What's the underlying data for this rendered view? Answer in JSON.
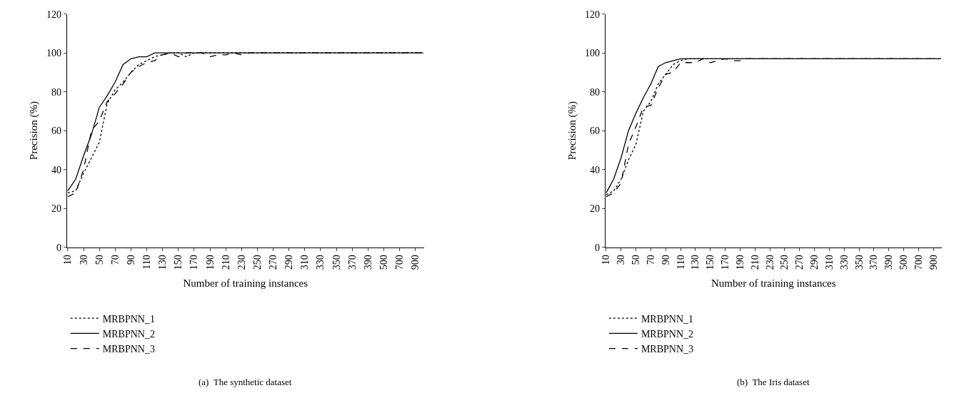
{
  "chart_data": [
    {
      "type": "line",
      "xlabel": "Number of training instances",
      "ylabel": "Precision (%)",
      "ylim": [
        0,
        120
      ],
      "yticks": [
        0,
        20,
        40,
        60,
        80,
        100,
        120
      ],
      "legend": "bottom left",
      "marker": "none",
      "categories": [
        "10",
        null,
        "30",
        null,
        "50",
        null,
        "70",
        null,
        "90",
        null,
        "110",
        null,
        "130",
        null,
        "150",
        null,
        "170",
        null,
        "190",
        null,
        "210",
        null,
        "230",
        null,
        "250",
        null,
        "270",
        null,
        "290",
        null,
        "310",
        null,
        "330",
        null,
        "350",
        null,
        "370",
        null,
        "390",
        null,
        "500",
        null,
        "700",
        null,
        "900",
        null
      ],
      "series": [
        {
          "name": "MRBPNN_1",
          "color": "#000000",
          "line_style": "dotted",
          "values": [
            28,
            29,
            38,
            46,
            54,
            74,
            81,
            85,
            90,
            94,
            96,
            98,
            99,
            100,
            100,
            98,
            100,
            100,
            100,
            100,
            100,
            100,
            100,
            100,
            100,
            100,
            100,
            100,
            100,
            100,
            100,
            100,
            100,
            100,
            100,
            100,
            100,
            100,
            100,
            100,
            100,
            100,
            100,
            100,
            100,
            100
          ]
        },
        {
          "name": "MRBPNN_2",
          "color": "#000000",
          "line_style": "solid",
          "values": [
            29,
            35,
            47,
            58,
            72,
            78,
            85,
            94,
            97,
            98,
            98,
            100,
            100,
            100,
            100,
            100,
            100,
            100,
            100,
            100,
            100,
            100,
            100,
            100,
            100,
            100,
            100,
            100,
            100,
            100,
            100,
            100,
            100,
            100,
            100,
            100,
            100,
            100,
            100,
            100,
            100,
            100,
            100,
            100,
            100,
            100
          ]
        },
        {
          "name": "MRBPNN_3",
          "color": "#000000",
          "line_style": "dashed",
          "values": [
            26,
            28,
            40,
            60,
            65,
            75,
            79,
            84,
            90,
            93,
            95,
            96,
            99,
            100,
            98,
            100,
            100,
            100,
            98,
            99,
            99,
            100,
            99,
            100,
            100,
            100,
            100,
            100,
            100,
            100,
            100,
            100,
            100,
            100,
            100,
            100,
            100,
            100,
            100,
            100,
            100,
            100,
            100,
            100,
            100,
            100
          ]
        }
      ],
      "annotations": [
        "(a)  The synthetic dataset"
      ]
    },
    {
      "type": "line",
      "xlabel": "Number of training instances",
      "ylabel": "Precision (%)",
      "ylim": [
        0,
        120
      ],
      "yticks": [
        0,
        20,
        40,
        60,
        80,
        100,
        120
      ],
      "legend": "bottom left",
      "marker": "none",
      "categories": [
        "10",
        null,
        "30",
        null,
        "50",
        null,
        "70",
        null,
        "90",
        null,
        "110",
        null,
        "130",
        null,
        "150",
        null,
        "170",
        null,
        "190",
        null,
        "210",
        null,
        "230",
        null,
        "250",
        null,
        "270",
        null,
        "290",
        null,
        "310",
        null,
        "330",
        null,
        "350",
        null,
        "370",
        null,
        "390",
        null,
        "500",
        null,
        "700",
        null,
        "900",
        null
      ],
      "series": [
        {
          "name": "MRBPNN_1",
          "color": "#000000",
          "line_style": "dotted",
          "values": [
            27,
            29,
            35,
            45,
            53,
            70,
            75,
            84,
            89,
            94,
            96,
            97,
            97,
            97,
            97,
            97,
            97,
            97,
            97,
            97,
            97,
            97,
            97,
            97,
            97,
            97,
            97,
            97,
            97,
            97,
            97,
            97,
            97,
            97,
            97,
            97,
            97,
            97,
            97,
            97,
            97,
            97,
            97,
            97,
            97,
            97
          ]
        },
        {
          "name": "MRBPNN_2",
          "color": "#000000",
          "line_style": "solid",
          "values": [
            28,
            35,
            46,
            60,
            69,
            77,
            84,
            93,
            95,
            96,
            97,
            97,
            97,
            97,
            97,
            97,
            97,
            97,
            97,
            97,
            97,
            97,
            97,
            97,
            97,
            97,
            97,
            97,
            97,
            97,
            97,
            97,
            97,
            97,
            97,
            97,
            97,
            97,
            97,
            97,
            97,
            97,
            97,
            97,
            97,
            97
          ]
        },
        {
          "name": "MRBPNN_3",
          "color": "#000000",
          "line_style": "dashed",
          "values": [
            26,
            28,
            33,
            53,
            62,
            72,
            73,
            82,
            89,
            90,
            95,
            95,
            95,
            97,
            95,
            96,
            97,
            96,
            96,
            97,
            97,
            97,
            97,
            97,
            97,
            97,
            97,
            97,
            97,
            97,
            97,
            97,
            97,
            97,
            97,
            97,
            97,
            97,
            97,
            97,
            97,
            97,
            97,
            97,
            97,
            97
          ]
        }
      ],
      "annotations": [
        "(b)  The Iris dataset"
      ]
    }
  ]
}
